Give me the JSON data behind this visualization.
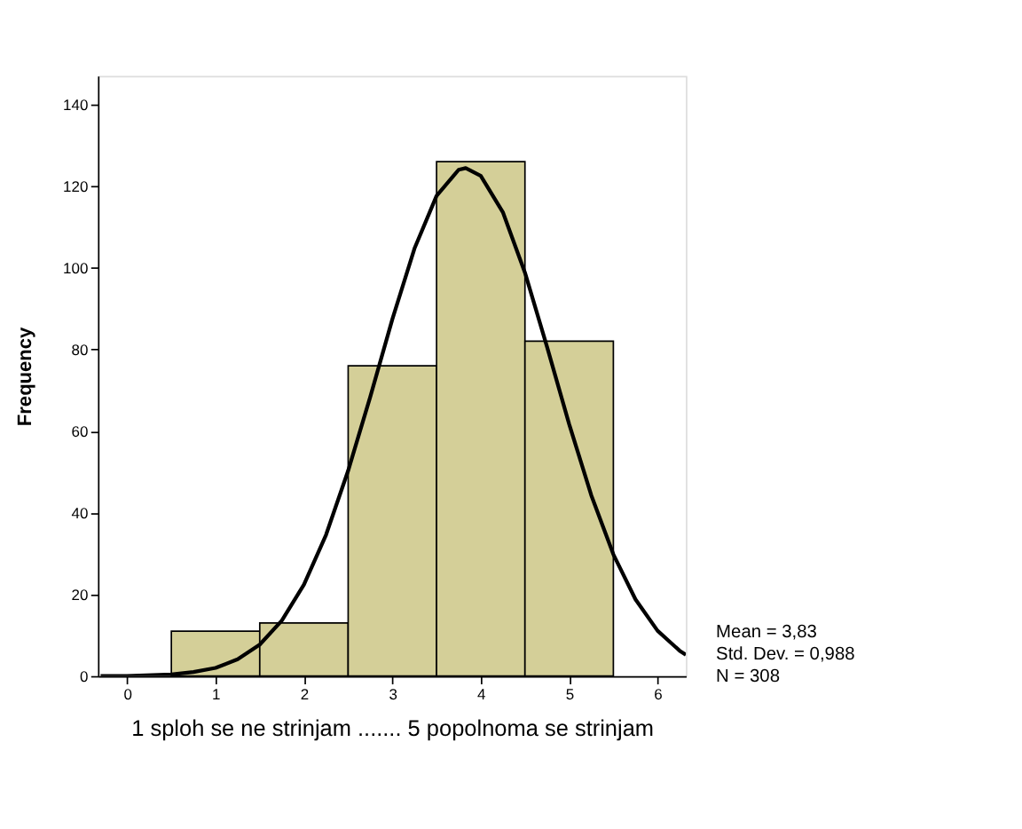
{
  "chart_data": {
    "type": "histogram",
    "xlabel": "1 sploh se ne strinjam ....... 5 popolnoma se strinjam",
    "ylabel": "Frequency",
    "bins": [
      0.5,
      1.5,
      2.5,
      3.5,
      4.5,
      5.5
    ],
    "values": [
      11,
      13,
      76,
      126,
      82
    ],
    "color": "#d4cf98",
    "series": [
      {
        "type": "line",
        "color": "#000000",
        "x": [
          -0.3,
          0,
          0.5,
          0.75,
          1,
          1.25,
          1.5,
          1.75,
          2,
          2.25,
          2.5,
          2.75,
          3,
          3.25,
          3.5,
          3.75,
          3.83,
          4,
          4.25,
          4.5,
          4.75,
          5,
          5.25,
          5.5,
          5.75,
          6,
          6.25,
          6.32
        ],
        "values": [
          0,
          0,
          0.4,
          1.0,
          2.0,
          4.1,
          7.7,
          13.6,
          22.4,
          34.6,
          50.3,
          68.4,
          87.4,
          104.7,
          117.6,
          124.0,
          124.4,
          122.5,
          113.6,
          98.8,
          80.6,
          61.7,
          44.3,
          29.8,
          18.8,
          11.1,
          6.2,
          5.2
        ]
      }
    ],
    "xlim": [
      -0.33,
      6.32
    ],
    "xticks": [
      0,
      1,
      2,
      3,
      4,
      5,
      6
    ],
    "ylim": [
      0,
      147
    ],
    "yticks": [
      0,
      20,
      40,
      60,
      80,
      100,
      120,
      140
    ],
    "grid": false,
    "annotations": [
      "Mean = 3,83",
      "Std. Dev. = 0,988",
      "N = 308"
    ]
  }
}
